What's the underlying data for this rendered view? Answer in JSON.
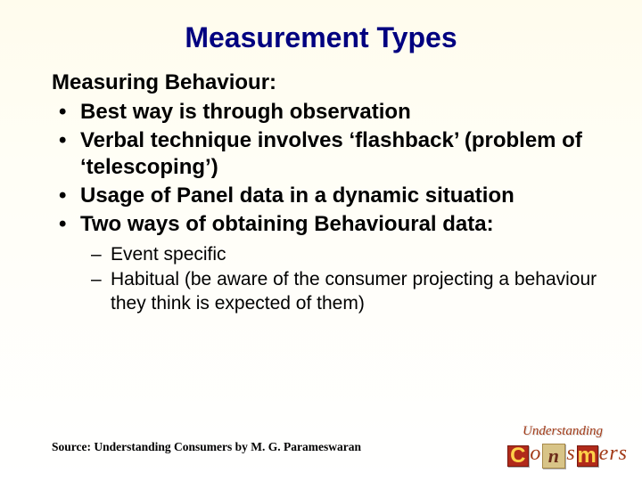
{
  "title": "Measurement Types",
  "subtitle": "Measuring Behaviour:",
  "bullets": [
    "Best way is through observation",
    "Verbal technique involves ‘flashback’ (problem of ‘telescoping’)",
    "Usage of Panel data in a dynamic situation",
    "Two ways of obtaining Behavioural data:"
  ],
  "sub_bullets": [
    "Event specific",
    "Habitual (be aware of the consumer projecting a behaviour they think is expected of them)"
  ],
  "source": "Source: Understanding Consumers by M. G. Parameswaran",
  "logo": {
    "under": "Understanding",
    "C": "C",
    "o": "o",
    "n": "n",
    "s": "s",
    "m": "m",
    "e": "e",
    "r": "r",
    "s2": "s"
  },
  "colors": {
    "title": "#000080",
    "text": "#000000",
    "logo_text": "#a23a17",
    "box_bg": "#b02a1a",
    "box_fg": "#ffd24a"
  },
  "typography": {
    "title_fontsize": 32,
    "body_fontsize": 24,
    "sub_fontsize": 21,
    "source_fontsize": 13.5
  }
}
